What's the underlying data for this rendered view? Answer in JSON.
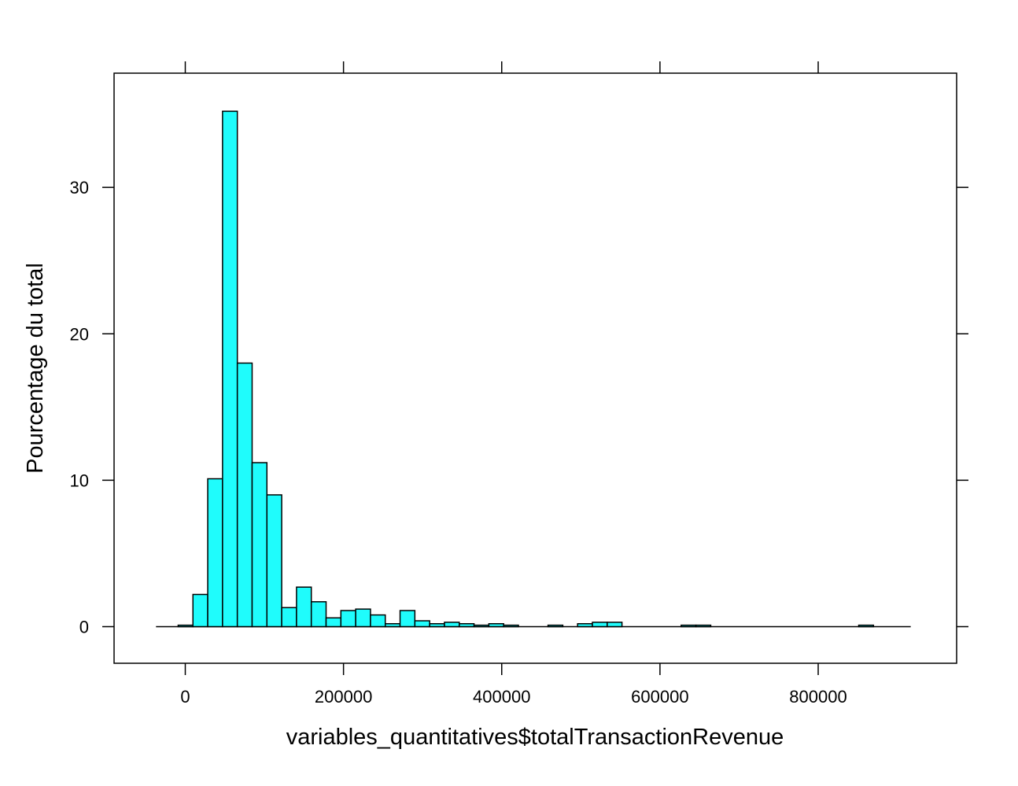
{
  "chart_data": {
    "type": "bar",
    "title": "",
    "xlabel": "variables_quantitatives$totalTransactionRevenue",
    "ylabel": "Pourcentage du total",
    "xlim": [
      -90000,
      975000
    ],
    "ylim": [
      -2.5,
      37.8
    ],
    "xticks": [
      0,
      200000,
      400000,
      600000,
      800000
    ],
    "xtick_labels": [
      "0",
      "200000",
      "400000",
      "600000",
      "800000"
    ],
    "yticks": [
      0,
      10,
      20,
      30
    ],
    "ytick_labels": [
      "0",
      "10",
      "20",
      "30"
    ],
    "grid": false,
    "bar_color": "#1ffcfc",
    "bar_edge_color": "#000000",
    "baseline": [
      -37000,
      917000
    ],
    "bin_width": 18700,
    "bin_start": -9000,
    "values": [
      0.1,
      2.2,
      10.1,
      35.2,
      18.0,
      11.2,
      9.0,
      1.3,
      2.7,
      1.7,
      0.6,
      1.1,
      1.2,
      0.8,
      0.2,
      1.1,
      0.4,
      0.2,
      0.3,
      0.2,
      0.1,
      0.2,
      0.1,
      0,
      0,
      0.1,
      0,
      0.2,
      0.3,
      0.3,
      0,
      0,
      0,
      0,
      0.1,
      0.1,
      0,
      0,
      0,
      0,
      0,
      0,
      0,
      0,
      0,
      0,
      0.1,
      0
    ]
  }
}
